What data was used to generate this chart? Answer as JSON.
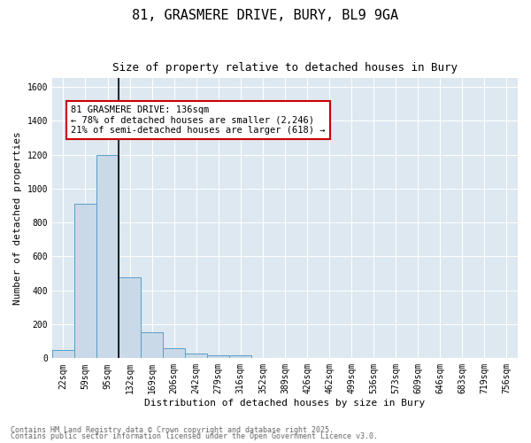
{
  "title_line1": "81, GRASMERE DRIVE, BURY, BL9 9GA",
  "title_line2": "Size of property relative to detached houses in Bury",
  "xlabel": "Distribution of detached houses by size in Bury",
  "ylabel": "Number of detached properties",
  "bin_labels": [
    "22sqm",
    "59sqm",
    "95sqm",
    "132sqm",
    "169sqm",
    "206sqm",
    "242sqm",
    "279sqm",
    "316sqm",
    "352sqm",
    "389sqm",
    "426sqm",
    "462sqm",
    "499sqm",
    "536sqm",
    "573sqm",
    "609sqm",
    "646sqm",
    "683sqm",
    "719sqm",
    "756sqm"
  ],
  "bin_values": [
    50,
    910,
    1200,
    475,
    155,
    57,
    28,
    15,
    15,
    0,
    0,
    0,
    0,
    0,
    0,
    0,
    0,
    0,
    0,
    0,
    0
  ],
  "bar_color": "#c9d9e8",
  "bar_edge_color": "#5a9ec8",
  "annotation_title": "81 GRASMERE DRIVE: 136sqm",
  "annotation_line2": "← 78% of detached houses are smaller (2,246)",
  "annotation_line3": "21% of semi-detached houses are larger (618) →",
  "annotation_box_color": "#ffffff",
  "annotation_box_edge": "#cc0000",
  "vertical_line_color": "#000000",
  "ylim": [
    0,
    1650
  ],
  "yticks": [
    0,
    200,
    400,
    600,
    800,
    1000,
    1200,
    1400,
    1600
  ],
  "background_color": "#dde8f0",
  "fig_background_color": "#ffffff",
  "grid_color": "#ffffff",
  "footer_line1": "Contains HM Land Registry data © Crown copyright and database right 2025.",
  "footer_line2": "Contains public sector information licensed under the Open Government Licence v3.0.",
  "title_fontsize": 11,
  "subtitle_fontsize": 9,
  "axis_label_fontsize": 8,
  "tick_fontsize": 7,
  "annotation_fontsize": 7.5,
  "footer_fontsize": 6
}
